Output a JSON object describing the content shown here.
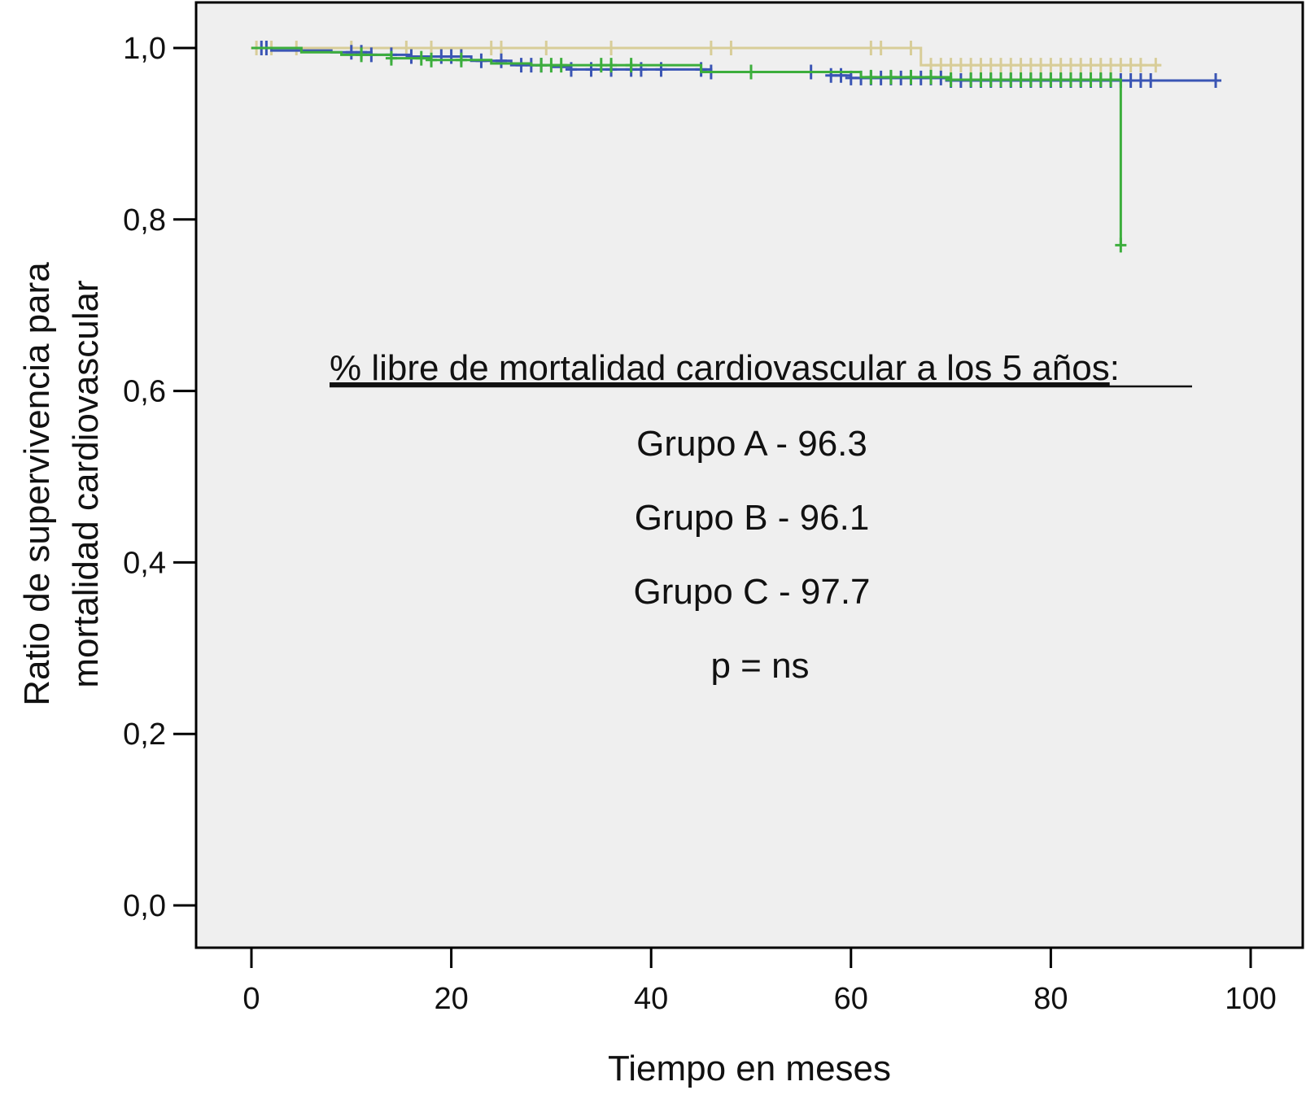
{
  "chart_data": {
    "type": "line",
    "title": "",
    "xlabel": "Tiempo en meses",
    "ylabel_lines": [
      "Ratio de supervivencia para",
      "mortalidad cardiovascular"
    ],
    "xlim": [
      0,
      100
    ],
    "ylim": [
      0,
      1
    ],
    "x_ticks": [
      0,
      20,
      40,
      60,
      80,
      100
    ],
    "x_tick_labels": [
      "0",
      "20",
      "40",
      "60",
      "80",
      "100"
    ],
    "y_ticks": [
      0,
      0.2,
      0.4,
      0.6,
      0.8,
      1.0
    ],
    "y_tick_labels": [
      "0,0",
      "0,2",
      "0,4",
      "0,6",
      "0,8",
      "1,0"
    ],
    "grid": false,
    "plot_background": "#efefef",
    "annotation": {
      "heading": "% libre de mortalidad cardiovascular a los 5 años",
      "heading_suffix": ":",
      "lines": [
        "Grupo A - 96.3",
        "Grupo B - 96.1",
        "Grupo C - 97.7",
        "p = ns"
      ]
    },
    "series": [
      {
        "color": "#d8cd98",
        "steps": [
          [
            0,
            1.0
          ],
          [
            67,
            0.98
          ],
          [
            91,
            0.98
          ]
        ],
        "censored": [
          0.5,
          2,
          4.5,
          10,
          15.5,
          18,
          24,
          25,
          29.5,
          36,
          46,
          48,
          62,
          63,
          66,
          68,
          69,
          70,
          71,
          72,
          73,
          74,
          75,
          76,
          77,
          78,
          79,
          80,
          81,
          82,
          83,
          84,
          85,
          86,
          87,
          88,
          89,
          90.5
        ]
      },
      {
        "color": "#3a55b4",
        "steps": [
          [
            0,
            1.0
          ],
          [
            2,
            0.997
          ],
          [
            8,
            0.995
          ],
          [
            12,
            0.992
          ],
          [
            16,
            0.99
          ],
          [
            22,
            0.985
          ],
          [
            26,
            0.98
          ],
          [
            30,
            0.978
          ],
          [
            32,
            0.975
          ],
          [
            46,
            0.972
          ],
          [
            58,
            0.968
          ],
          [
            60,
            0.965
          ],
          [
            70,
            0.962
          ],
          [
            97,
            0.962
          ]
        ],
        "censored": [
          1,
          1.5,
          10,
          11,
          12,
          14,
          16,
          19,
          20,
          21,
          23,
          25,
          27,
          28,
          29,
          32,
          34,
          36,
          38,
          39,
          41,
          45,
          46,
          50,
          56,
          58,
          59,
          60,
          61,
          62,
          63,
          64,
          65,
          66,
          67,
          68,
          69,
          70,
          71,
          72,
          73,
          74,
          75,
          76,
          77,
          78,
          79,
          80,
          81,
          82,
          83,
          84,
          85,
          86,
          87,
          88,
          89,
          90,
          96.5
        ]
      },
      {
        "color": "#3cae3c",
        "steps": [
          [
            0,
            1.0
          ],
          [
            5,
            0.995
          ],
          [
            9,
            0.992
          ],
          [
            14,
            0.988
          ],
          [
            18,
            0.986
          ],
          [
            24,
            0.982
          ],
          [
            28,
            0.98
          ],
          [
            45,
            0.972
          ],
          [
            61,
            0.966
          ],
          [
            70,
            0.963
          ],
          [
            87,
            0.963
          ],
          [
            87,
            0.77
          ]
        ],
        "censored": [
          11,
          14,
          17,
          18,
          21,
          29,
          30,
          31,
          35,
          36,
          38,
          50,
          62,
          64,
          66,
          68,
          70,
          72,
          73,
          74,
          75,
          76,
          77,
          78,
          79,
          80,
          81,
          82,
          83,
          84,
          85,
          86,
          87
        ]
      }
    ]
  }
}
